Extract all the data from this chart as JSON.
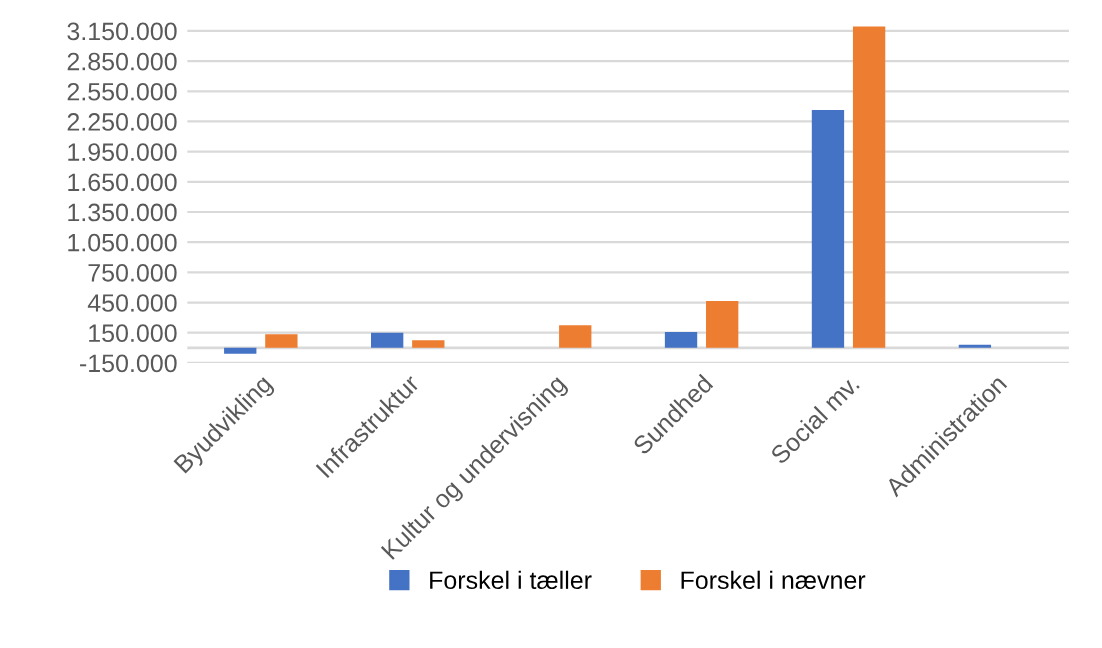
{
  "chart_data": {
    "type": "bar",
    "categories": [
      "Byudvikling",
      "Infrastruktur",
      "Kultur og undervisning",
      "Sundhed",
      "Social mv.",
      "Administration"
    ],
    "series": [
      {
        "name": "Forskel i tæller",
        "color": "#4472c4",
        "values": [
          -60000,
          150000,
          0,
          157000,
          2365000,
          30000
        ]
      },
      {
        "name": "Forskel i nævner",
        "color": "#ed7d31",
        "values": [
          135000,
          75000,
          225000,
          465000,
          3194000,
          0
        ]
      }
    ],
    "ylim": [
      -150000,
      3200000
    ],
    "yticks": [
      {
        "value": -150000,
        "label": "-150.000"
      },
      {
        "value": 150000,
        "label": "150.000"
      },
      {
        "value": 450000,
        "label": "450.000"
      },
      {
        "value": 750000,
        "label": "750.000"
      },
      {
        "value": 1050000,
        "label": "1.050.000"
      },
      {
        "value": 1350000,
        "label": "1.350.000"
      },
      {
        "value": 1650000,
        "label": "1.650.000"
      },
      {
        "value": 1950000,
        "label": "1.950.000"
      },
      {
        "value": 2250000,
        "label": "2.250.000"
      },
      {
        "value": 2550000,
        "label": "2.550.000"
      },
      {
        "value": 2850000,
        "label": "2.850.000"
      },
      {
        "value": 3150000,
        "label": "3.150.000"
      }
    ],
    "grid": "y",
    "legend": "bottom"
  }
}
